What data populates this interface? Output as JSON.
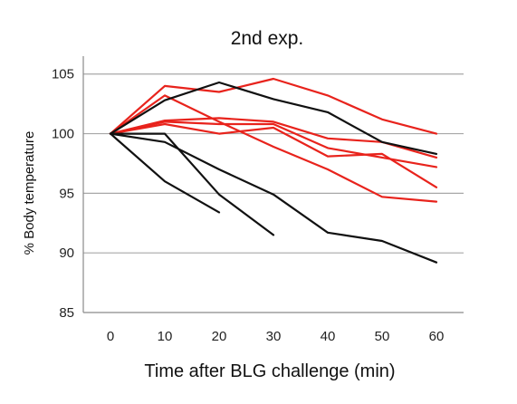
{
  "chart_data": {
    "type": "line",
    "title": "2nd exp.",
    "xlabel": "Time after BLG challenge (min)",
    "ylabel": "% Body temperature",
    "x_ticks": [
      0,
      10,
      20,
      30,
      40,
      50,
      60
    ],
    "y_ticks": [
      85,
      90,
      95,
      100,
      105
    ],
    "xlim": [
      -5,
      65
    ],
    "ylim": [
      85,
      106.5
    ],
    "grid": true,
    "legend": "none",
    "colors": {
      "red": "#e8231c",
      "black": "#111111",
      "grid": "#a8a8a8"
    },
    "series": [
      {
        "color": "red",
        "x": [
          0,
          10,
          20,
          30,
          40,
          50,
          60
        ],
        "y": [
          100,
          104,
          103.5,
          104.6,
          103.2,
          101.2,
          100
        ]
      },
      {
        "color": "red",
        "x": [
          0,
          10,
          20,
          30,
          40,
          50,
          60
        ],
        "y": [
          100,
          103.2,
          101,
          98.9,
          97.0,
          94.7,
          94.3
        ]
      },
      {
        "color": "red",
        "x": [
          0,
          10,
          20,
          30,
          40,
          50,
          60
        ],
        "y": [
          100,
          101.1,
          101.3,
          101.0,
          99.6,
          99.3,
          98.0
        ]
      },
      {
        "color": "red",
        "x": [
          0,
          10,
          20,
          30,
          40,
          50,
          60
        ],
        "y": [
          100,
          101.0,
          100.8,
          100.8,
          98.8,
          98.0,
          97.2
        ]
      },
      {
        "color": "red",
        "x": [
          0,
          10,
          20,
          30,
          40,
          50,
          60
        ],
        "y": [
          100,
          100.8,
          100.0,
          100.5,
          98.1,
          98.3,
          95.5
        ]
      },
      {
        "color": "black",
        "x": [
          0,
          10,
          20,
          30,
          40,
          50,
          60
        ],
        "y": [
          100,
          102.8,
          104.3,
          102.9,
          101.8,
          99.3,
          98.3
        ]
      },
      {
        "color": "black",
        "x": [
          0,
          10,
          20,
          30,
          40,
          50,
          60
        ],
        "y": [
          100,
          99.3,
          97.0,
          94.9,
          91.7,
          91.0,
          89.2
        ]
      },
      {
        "color": "black",
        "x": [
          0,
          10,
          20,
          30
        ],
        "y": [
          100,
          100,
          94.9,
          91.5
        ]
      },
      {
        "color": "black",
        "x": [
          0,
          10,
          20
        ],
        "y": [
          100,
          96.0,
          93.4
        ]
      }
    ]
  }
}
